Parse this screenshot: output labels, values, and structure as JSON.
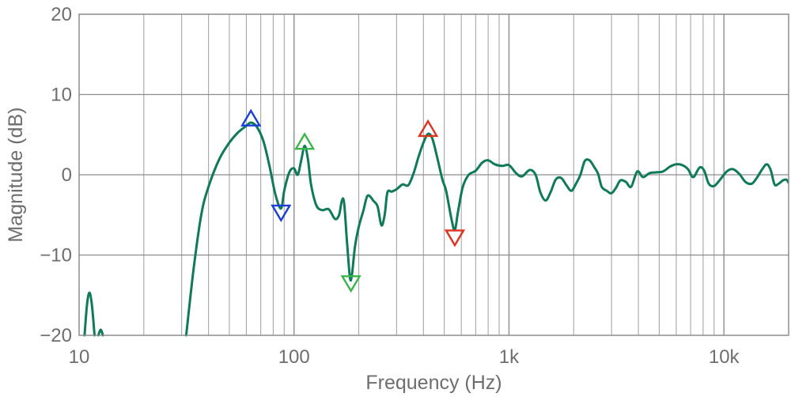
{
  "chart_data": {
    "type": "line",
    "title": "",
    "xlabel": "Frequency (Hz)",
    "ylabel": "Magnitude (dB)",
    "x_scale": "log",
    "xlim": [
      10,
      20000
    ],
    "ylim": [
      -20,
      20
    ],
    "grid": true,
    "x_ticks": [
      {
        "value": 10,
        "label": "10"
      },
      {
        "value": 100,
        "label": "100"
      },
      {
        "value": 1000,
        "label": "1k"
      },
      {
        "value": 10000,
        "label": "10k"
      }
    ],
    "y_ticks": [
      {
        "value": 20,
        "label": "20"
      },
      {
        "value": 10,
        "label": "10"
      },
      {
        "value": 0,
        "label": "0"
      },
      {
        "value": -10,
        "label": "−10"
      },
      {
        "value": -20,
        "label": "−20"
      }
    ],
    "series": [
      {
        "color": "#0f7a57",
        "segments": [
          [
            [
              10.6,
              -20
            ],
            [
              10.9,
              -16
            ],
            [
              11.2,
              -14.7
            ],
            [
              11.5,
              -16.5
            ],
            [
              11.8,
              -20
            ]
          ],
          [
            [
              12.3,
              -20
            ],
            [
              12.6,
              -19.3
            ],
            [
              12.9,
              -20
            ]
          ],
          [
            [
              31.5,
              -20
            ],
            [
              34,
              -12
            ],
            [
              37,
              -5
            ],
            [
              40,
              -1.5
            ],
            [
              45,
              2
            ],
            [
              50,
              4
            ],
            [
              55,
              5.3
            ],
            [
              60,
              6.1
            ],
            [
              63,
              6.5
            ],
            [
              67,
              6
            ],
            [
              72,
              4.2
            ],
            [
              77,
              1
            ],
            [
              82,
              -2.5
            ],
            [
              87,
              -4.2
            ],
            [
              90,
              -2
            ],
            [
              95,
              0.3
            ],
            [
              100,
              0.8
            ],
            [
              104,
              0
            ],
            [
              108,
              1.8
            ],
            [
              112,
              3.6
            ],
            [
              116,
              2
            ],
            [
              120,
              -1.2
            ],
            [
              127,
              -3.8
            ],
            [
              135,
              -4.4
            ],
            [
              145,
              -4.3
            ],
            [
              155,
              -5.5
            ],
            [
              162,
              -5
            ],
            [
              167,
              -3.2
            ],
            [
              171,
              -3.5
            ],
            [
              176,
              -8
            ],
            [
              182,
              -12.8
            ],
            [
              186,
              -12.4
            ],
            [
              192,
              -9
            ],
            [
              200,
              -6.5
            ],
            [
              210,
              -4.5
            ],
            [
              220,
              -2.6
            ],
            [
              235,
              -3.3
            ],
            [
              245,
              -4
            ],
            [
              255,
              -6.3
            ],
            [
              264,
              -5
            ],
            [
              272,
              -2.2
            ],
            [
              285,
              -2.1
            ],
            [
              300,
              -1.8
            ],
            [
              320,
              -1.2
            ],
            [
              340,
              -1.3
            ],
            [
              360,
              0.2
            ],
            [
              380,
              2.3
            ],
            [
              400,
              4
            ],
            [
              420,
              5.1
            ],
            [
              440,
              4.5
            ],
            [
              465,
              2
            ],
            [
              490,
              -0.6
            ],
            [
              510,
              -2
            ],
            [
              540,
              -5.5
            ],
            [
              560,
              -6.9
            ],
            [
              580,
              -4.5
            ],
            [
              610,
              -1.5
            ],
            [
              650,
              0
            ],
            [
              700,
              0.5
            ],
            [
              750,
              1.5
            ],
            [
              800,
              1.8
            ],
            [
              860,
              1.3
            ],
            [
              930,
              1.1
            ],
            [
              1000,
              1.2
            ],
            [
              1080,
              0.2
            ],
            [
              1150,
              -0.2
            ],
            [
              1250,
              0.6
            ],
            [
              1330,
              0
            ],
            [
              1400,
              -2.2
            ],
            [
              1480,
              -3.2
            ],
            [
              1560,
              -2.2
            ],
            [
              1650,
              -0.6
            ],
            [
              1750,
              -0.4
            ],
            [
              1850,
              -1.3
            ],
            [
              1950,
              -2
            ],
            [
              2050,
              -1.1
            ],
            [
              2150,
              0
            ],
            [
              2250,
              1.7
            ],
            [
              2370,
              1.8
            ],
            [
              2500,
              0.9
            ],
            [
              2600,
              0.1
            ],
            [
              2700,
              -1.5
            ],
            [
              2850,
              -2
            ],
            [
              3000,
              -2.3
            ],
            [
              3150,
              -1.6
            ],
            [
              3300,
              -0.7
            ],
            [
              3500,
              -0.9
            ],
            [
              3700,
              -1.5
            ],
            [
              3950,
              0.4
            ],
            [
              4200,
              -0.3
            ],
            [
              4500,
              0.2
            ],
            [
              4800,
              0.3
            ],
            [
              5200,
              0.4
            ],
            [
              5600,
              1
            ],
            [
              6000,
              1.3
            ],
            [
              6400,
              1.2
            ],
            [
              6800,
              0.7
            ],
            [
              7200,
              -0.3
            ],
            [
              7700,
              0.9
            ],
            [
              8100,
              0.5
            ],
            [
              8500,
              -1.1
            ],
            [
              9000,
              -1.4
            ],
            [
              9600,
              -0.6
            ],
            [
              10300,
              0.4
            ],
            [
              11000,
              0.7
            ],
            [
              11800,
              0.1
            ],
            [
              12600,
              -0.9
            ],
            [
              13500,
              -1.1
            ],
            [
              14300,
              -0.3
            ],
            [
              15000,
              0.6
            ],
            [
              15800,
              1.3
            ],
            [
              16500,
              0.6
            ],
            [
              17200,
              -1.2
            ],
            [
              18000,
              -1.1
            ],
            [
              18800,
              -0.7
            ],
            [
              19500,
              -0.6
            ],
            [
              20000,
              -1
            ]
          ]
        ]
      }
    ],
    "markers": [
      {
        "x": 63,
        "y": 6.5,
        "direction": "up",
        "color": "#1a3fd8"
      },
      {
        "x": 87,
        "y": -4.2,
        "direction": "down",
        "color": "#1a3fd8"
      },
      {
        "x": 112,
        "y": 3.6,
        "direction": "up",
        "color": "#3ab54a"
      },
      {
        "x": 184,
        "y": -13,
        "direction": "down",
        "color": "#3ab54a"
      },
      {
        "x": 420,
        "y": 5.2,
        "direction": "up",
        "color": "#e0301e"
      },
      {
        "x": 560,
        "y": -7.3,
        "direction": "down",
        "color": "#e0301e"
      }
    ],
    "colors": {
      "grid_major": "#8c8c8c",
      "grid_minor": "#a6a6a6",
      "zero_line": "#8c8c8c",
      "frame": "#8c8c8c"
    }
  }
}
